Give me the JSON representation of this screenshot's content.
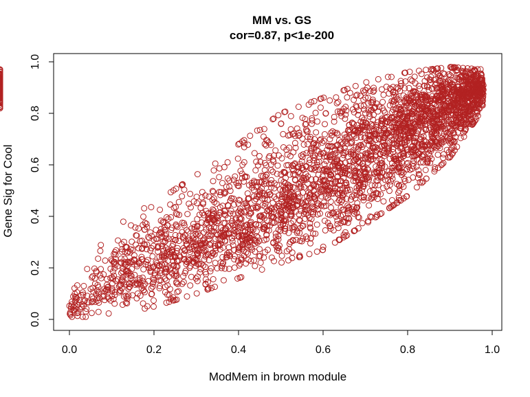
{
  "chart_data": {
    "type": "scatter",
    "title": "MM vs. GS",
    "subtitle": "cor=0.87, p<1e-200",
    "xlabel": "ModMem in brown module",
    "ylabel": "Gene Sig for Cool",
    "xlim": [
      0.0,
      1.0
    ],
    "ylim": [
      0.0,
      1.0
    ],
    "x_ticks": [
      "0.0",
      "0.2",
      "0.4",
      "0.6",
      "0.8",
      "1.0"
    ],
    "y_ticks": [
      "0.0",
      "0.2",
      "0.4",
      "0.6",
      "0.8",
      "1.0"
    ],
    "grid": false,
    "legend": "none",
    "marker": "open-circle",
    "point_color": "#B22222",
    "correlation": 0.87,
    "n_points_approx": 3500,
    "density_profile": {
      "x_bins": [
        0.0,
        0.1,
        0.2,
        0.3,
        0.4,
        0.5,
        0.6,
        0.7,
        0.8,
        0.9,
        1.0
      ],
      "relative_density": [
        0.3,
        0.55,
        0.65,
        0.75,
        0.85,
        1.0,
        1.15,
        1.3,
        1.5,
        1.5,
        0.6
      ],
      "points": [
        {
          "x": 0.0,
          "y_center": 0.03,
          "y_low": 0.01,
          "y_high": 0.08
        },
        {
          "x": 0.05,
          "y_center": 0.1,
          "y_low": 0.01,
          "y_high": 0.25
        },
        {
          "x": 0.1,
          "y_center": 0.15,
          "y_low": 0.02,
          "y_high": 0.33
        },
        {
          "x": 0.15,
          "y_center": 0.18,
          "y_low": 0.03,
          "y_high": 0.42
        },
        {
          "x": 0.2,
          "y_center": 0.23,
          "y_low": 0.05,
          "y_high": 0.45
        },
        {
          "x": 0.3,
          "y_center": 0.29,
          "y_low": 0.1,
          "y_high": 0.56
        },
        {
          "x": 0.4,
          "y_center": 0.37,
          "y_low": 0.16,
          "y_high": 0.68
        },
        {
          "x": 0.5,
          "y_center": 0.45,
          "y_low": 0.22,
          "y_high": 0.8
        },
        {
          "x": 0.6,
          "y_center": 0.55,
          "y_low": 0.27,
          "y_high": 0.86
        },
        {
          "x": 0.7,
          "y_center": 0.65,
          "y_low": 0.37,
          "y_high": 0.92
        },
        {
          "x": 0.8,
          "y_center": 0.74,
          "y_low": 0.48,
          "y_high": 0.96
        },
        {
          "x": 0.9,
          "y_center": 0.83,
          "y_low": 0.63,
          "y_high": 0.98
        },
        {
          "x": 0.98,
          "y_center": 0.9,
          "y_low": 0.82,
          "y_high": 0.97
        }
      ]
    }
  }
}
